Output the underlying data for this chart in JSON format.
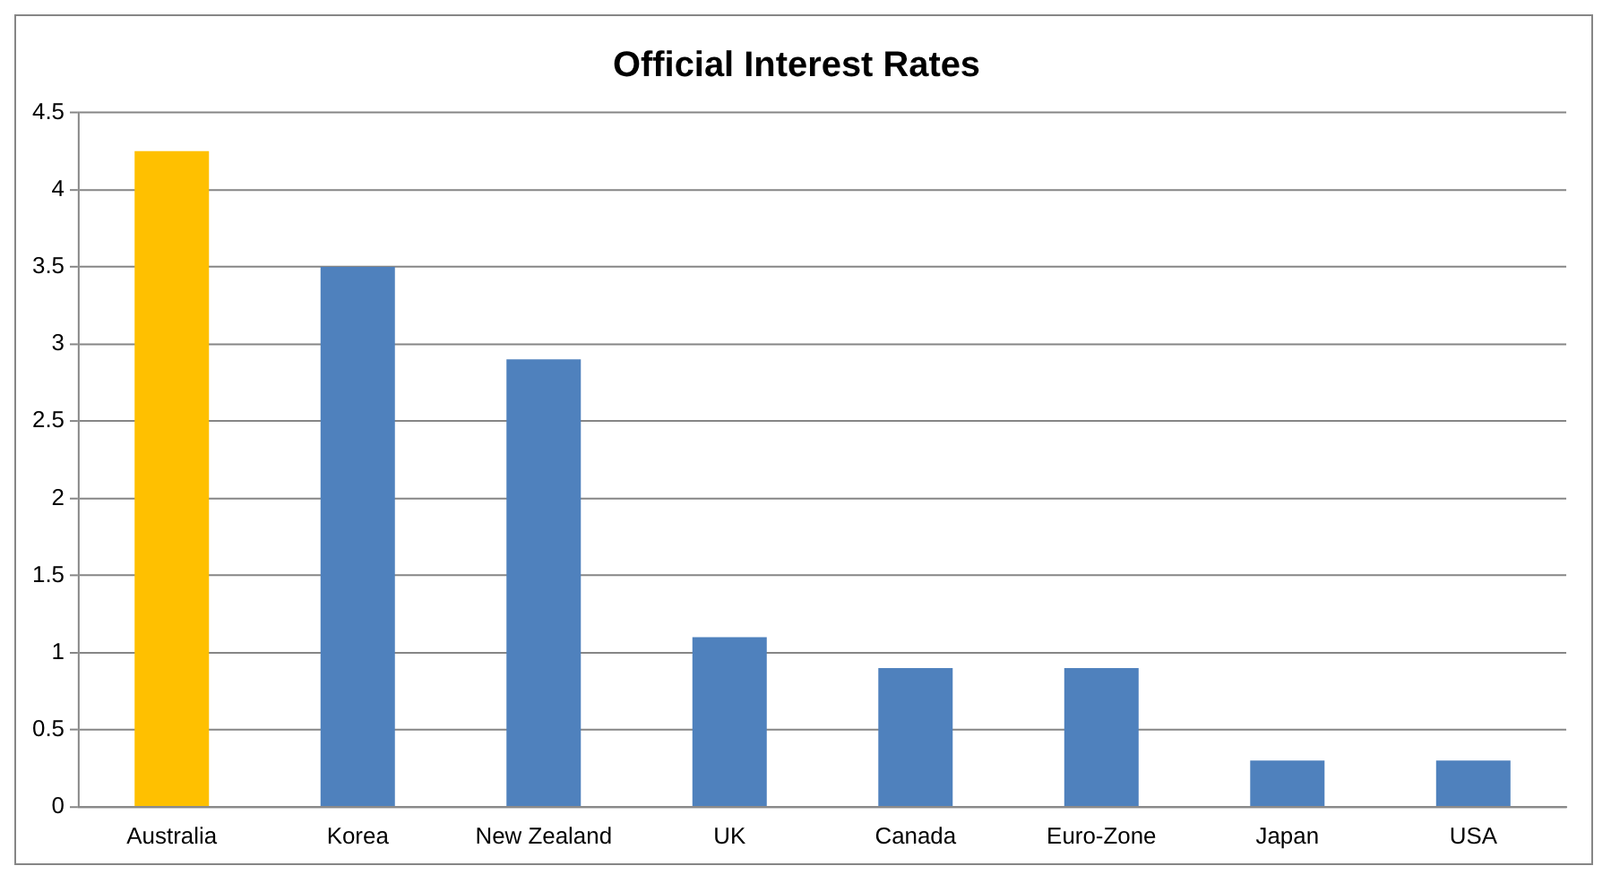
{
  "chart_data": {
    "type": "bar",
    "title": "Official Interest Rates",
    "categories": [
      "Australia",
      "Korea",
      "New Zealand",
      "UK",
      "Canada",
      "Euro-Zone",
      "Japan",
      "USA"
    ],
    "values": [
      4.25,
      3.5,
      2.9,
      1.1,
      0.9,
      0.9,
      0.3,
      0.3
    ],
    "colors": [
      "#ffc000",
      "#4f81bd",
      "#4f81bd",
      "#4f81bd",
      "#4f81bd",
      "#4f81bd",
      "#4f81bd",
      "#4f81bd"
    ],
    "ylim": [
      0,
      4.5
    ],
    "yticks": [
      0,
      0.5,
      1,
      1.5,
      2,
      2.5,
      3,
      3.5,
      4,
      4.5
    ],
    "grid": "y",
    "legend": false
  }
}
